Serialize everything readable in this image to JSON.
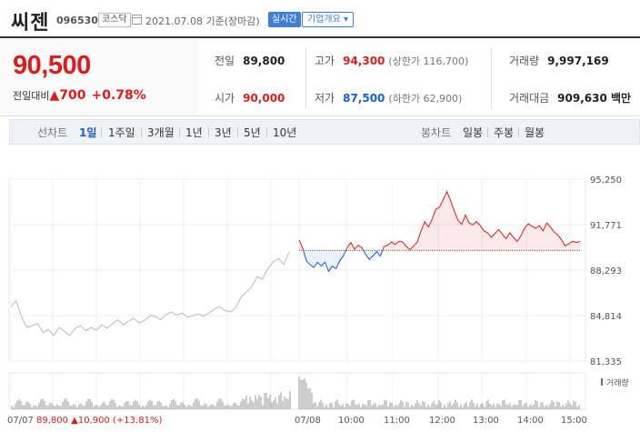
{
  "header": {
    "name": "씨젠",
    "code": "096530",
    "market": "코스닥",
    "date": "2021.07.08  기준(장마감)",
    "live_label": "실시간",
    "company_info_label": "기업개요 ▾"
  },
  "price": {
    "current": "90,500",
    "change_label": "전일대비",
    "change_arrow": "▲",
    "change": "700",
    "change_pct": "+0.78%"
  },
  "quote": {
    "prev_close_label": "전일",
    "prev_close": "89,800",
    "high_label": "고가",
    "high": "94,300",
    "upper_limit": "(상한가 116,700)",
    "volume_label": "거래량",
    "volume": "9,997,169",
    "open_label": "시가",
    "open": "90,000",
    "low_label": "저가",
    "low": "87,500",
    "lower_limit": "(하한가 62,900)",
    "amount_label": "거래대금",
    "amount": "909,630 백만"
  },
  "tabs": {
    "line_chart_label": "선차트",
    "periods": [
      "1일",
      "1주일",
      "3개월",
      "1년",
      "3년",
      "5년",
      "10년"
    ],
    "candle_chart_label": "봉차트",
    "candles": [
      "일봉",
      "주봉",
      "월봉"
    ]
  },
  "chart_data": {
    "type": "line",
    "ylabels": [
      "95,250",
      "91,771",
      "88,293",
      "84,814",
      "81,335"
    ],
    "ylim": [
      81335,
      95250
    ],
    "xlabels": [
      "07/08",
      "10:00",
      "11:00",
      "12:00",
      "13:00",
      "14:00",
      "15:00"
    ],
    "baseline": 89800,
    "volume_label": "거래량",
    "prev_day_summary": {
      "date": "07/07",
      "close": "89,800",
      "arrow": "▲",
      "change": "10,900",
      "pct": "(+13.81%)"
    },
    "prev_day_series": [
      85500,
      85950,
      84700,
      83900,
      84050,
      84200,
      83500,
      83750,
      83300,
      83900,
      83600,
      83300,
      83850,
      84050,
      83650,
      83900,
      83700,
      84100,
      83850,
      84200,
      84500,
      84100,
      84400,
      84600,
      84250,
      84450,
      84800,
      84750,
      84500,
      84900,
      85100,
      84850,
      85000,
      84700,
      84800,
      84950,
      84750,
      85000,
      85300,
      85500,
      85200,
      85100,
      85400,
      86200,
      86600,
      87000,
      87800,
      87600,
      88400,
      88900,
      89200,
      88700,
      89700
    ],
    "today_series": [
      90600,
      89950,
      89000,
      88700,
      88500,
      88900,
      88600,
      88900,
      88200,
      88600,
      88400,
      89000,
      89400,
      90000,
      90400,
      89900,
      90200,
      90000,
      89500,
      89100,
      89400,
      89700,
      89350,
      90100,
      90200,
      90450,
      90250,
      90500,
      90450,
      90100,
      89850,
      90150,
      90450,
      91300,
      92000,
      91600,
      92200,
      92950,
      93100,
      93700,
      94300,
      93600,
      92800,
      92100,
      91800,
      92500,
      91900,
      91750,
      92000,
      91700,
      91300,
      91150,
      90800,
      91100,
      91400,
      91050,
      90700,
      91150,
      90800,
      90500,
      90900,
      91500,
      91850,
      91650,
      91500,
      91700,
      91300,
      91900,
      91600,
      91200,
      91000,
      90600,
      90150,
      90300,
      90500,
      90400,
      90500
    ]
  }
}
